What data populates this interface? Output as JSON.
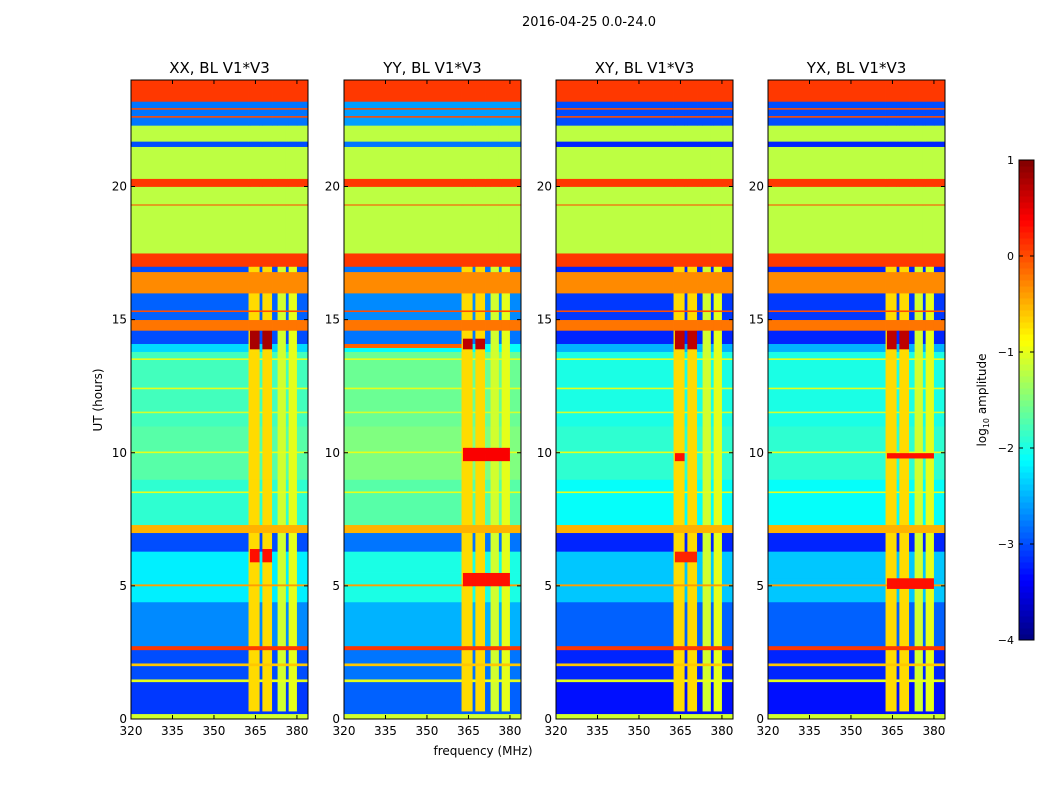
{
  "chart_data": [
    {
      "type": "heatmap",
      "suptitle": "2016-04-25 0.0-24.0",
      "xlabel": "frequency (MHz)",
      "ylabel": "UT (hours)",
      "xlim": [
        320,
        384
      ],
      "ylim": [
        0,
        24
      ],
      "xticks": [
        "320",
        "335",
        "350",
        "365",
        "380"
      ],
      "xtick_values": [
        320,
        335,
        350,
        365,
        380
      ],
      "yticks": [
        "0",
        "5",
        "10",
        "15",
        "20"
      ],
      "ytick_values": [
        0,
        5,
        10,
        15,
        20
      ],
      "colorbar": {
        "label_main": "log",
        "label_sub": "10",
        "label_rest": " amplitude",
        "range": [
          -4,
          1
        ],
        "ticks": [
          "1",
          "0",
          "−1",
          "−2",
          "−3",
          "−4"
        ],
        "tick_values": [
          1,
          0,
          -1,
          -2,
          -3,
          -4
        ],
        "colormap": "jet"
      },
      "time_bands": [
        [
          0,
          0.2,
          -1.1
        ],
        [
          0.2,
          1.4,
          -3.1
        ],
        [
          1.4,
          1.5,
          -1.0
        ],
        [
          1.5,
          2.0,
          -3.0
        ],
        [
          2.0,
          2.1,
          -0.6
        ],
        [
          2.1,
          2.6,
          -3.0
        ],
        [
          2.6,
          2.75,
          0.1
        ],
        [
          2.75,
          4.4,
          -2.7
        ],
        [
          4.4,
          6.3,
          -2.2
        ],
        [
          6.3,
          7.0,
          -3.0
        ],
        [
          7.0,
          7.3,
          -0.5
        ],
        [
          7.3,
          9.0,
          -1.9
        ],
        [
          9.0,
          11.0,
          -1.7
        ],
        [
          11.0,
          13.8,
          -1.8
        ],
        [
          13.8,
          14.1,
          -2.3
        ],
        [
          14.1,
          14.6,
          -3.0
        ],
        [
          14.6,
          15.0,
          -0.2
        ],
        [
          15.0,
          16.0,
          -2.9
        ],
        [
          16.0,
          16.8,
          -0.3
        ],
        [
          16.8,
          17.0,
          -3.0
        ],
        [
          17.0,
          17.5,
          0.1
        ],
        [
          17.5,
          20.0,
          -1.2
        ],
        [
          20.0,
          20.3,
          0.1
        ],
        [
          20.3,
          21.5,
          -1.2
        ],
        [
          21.5,
          21.7,
          -3.0
        ],
        [
          21.7,
          22.3,
          -1.2
        ],
        [
          22.3,
          23.2,
          -2.8
        ],
        [
          23.2,
          24.0,
          0.1
        ]
      ],
      "thin_lines": [
        [
          5.0,
          5.07,
          -0.4
        ],
        [
          8.5,
          8.56,
          -1.0
        ],
        [
          10.0,
          10.06,
          -1.0
        ],
        [
          11.5,
          11.56,
          -1.1
        ],
        [
          12.4,
          12.46,
          -1.0
        ],
        [
          13.5,
          13.56,
          -1.0
        ],
        [
          15.3,
          15.36,
          0.0
        ],
        [
          19.3,
          19.34,
          0.0
        ],
        [
          22.6,
          22.66,
          0.0
        ],
        [
          22.9,
          22.96,
          0.0
        ]
      ],
      "channel_bands": [
        {
          "range": [
            362.5,
            366.5
          ],
          "value": -0.7
        },
        {
          "range": [
            367.5,
            371.0
          ],
          "value": -0.7
        },
        {
          "range": [
            373.0,
            376.0
          ],
          "value": -1.1
        },
        {
          "range": [
            377.0,
            380.0
          ],
          "value": -1.0
        }
      ],
      "channel_time_range": [
        0.3,
        17.0
      ],
      "panels": [
        {
          "title": "XX, BL V1*V3",
          "offset": 0.0,
          "hotspots": [
            [
              363,
              366.5,
              13.9,
              14.6,
              0.8
            ],
            [
              367.5,
              371,
              13.9,
              14.6,
              0.8
            ],
            [
              363,
              366.5,
              5.9,
              6.4,
              0.3
            ],
            [
              367.5,
              371,
              5.9,
              6.4,
              0.3
            ]
          ]
        },
        {
          "title": "YY, BL V1*V3",
          "offset": 0.2,
          "hotspots": [
            [
              363,
              366.5,
              13.9,
              14.3,
              0.7
            ],
            [
              367.5,
              371,
              13.9,
              14.3,
              0.7
            ],
            [
              320,
              362.5,
              13.95,
              14.1,
              -0.1
            ],
            [
              363,
              380,
              9.7,
              10.2,
              0.4
            ],
            [
              363,
              380,
              5.0,
              5.5,
              0.3
            ]
          ]
        },
        {
          "title": "XY, BL V1*V3",
          "offset": -0.2,
          "hotspots": [
            [
              363,
              366.5,
              13.9,
              14.6,
              0.7
            ],
            [
              367.5,
              371,
              13.9,
              14.6,
              0.7
            ],
            [
              363,
              366.5,
              9.7,
              10.0,
              0.3
            ],
            [
              363,
              371,
              5.9,
              6.3,
              0.2
            ]
          ]
        },
        {
          "title": "YX, BL V1*V3",
          "offset": -0.2,
          "hotspots": [
            [
              363,
              366.5,
              13.9,
              14.6,
              0.7
            ],
            [
              367.5,
              371,
              13.9,
              14.6,
              0.7
            ],
            [
              363,
              380,
              4.9,
              5.3,
              0.3
            ],
            [
              363,
              380,
              9.8,
              10.0,
              0.3
            ]
          ]
        }
      ]
    }
  ]
}
